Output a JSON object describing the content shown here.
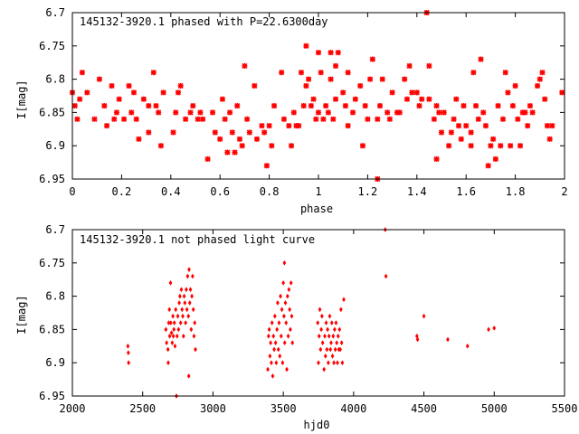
{
  "colors": {
    "points": "#ff0000",
    "axes": "#000000",
    "background": "#ffffff"
  },
  "chart_data": [
    {
      "type": "scatter",
      "title": "145132-3920.1 phased with P=22.6300day",
      "xlabel": "phase",
      "ylabel": "I[mag]",
      "xlim": [
        0,
        2
      ],
      "ylim": [
        6.7,
        6.95
      ],
      "y_inverted": true,
      "x_ticks": [
        0,
        0.2,
        0.4,
        0.6,
        0.8,
        1,
        1.2,
        1.4,
        1.6,
        1.8,
        2
      ],
      "x_tick_labels": [
        "0",
        "0.2",
        "0.4",
        "0.6",
        "0.8",
        "1",
        "1.2",
        "1.4",
        "1.6",
        "1.8",
        "2"
      ],
      "y_ticks": [
        6.7,
        6.75,
        6.8,
        6.85,
        6.9,
        6.95
      ],
      "y_tick_labels": [
        "6.7",
        "6.75",
        "6.8",
        "6.85",
        "6.9",
        "6.95"
      ],
      "marker": "cross",
      "grid": false,
      "points": [
        [
          0.0,
          6.82
        ],
        [
          0.01,
          6.84
        ],
        [
          0.02,
          6.86
        ],
        [
          0.03,
          6.83
        ],
        [
          0.04,
          6.79
        ],
        [
          0.06,
          6.82
        ],
        [
          0.09,
          6.86
        ],
        [
          0.11,
          6.8
        ],
        [
          0.13,
          6.84
        ],
        [
          0.14,
          6.87
        ],
        [
          0.16,
          6.81
        ],
        [
          0.17,
          6.86
        ],
        [
          0.18,
          6.85
        ],
        [
          0.19,
          6.83
        ],
        [
          0.21,
          6.86
        ],
        [
          0.23,
          6.81
        ],
        [
          0.24,
          6.85
        ],
        [
          0.25,
          6.82
        ],
        [
          0.26,
          6.86
        ],
        [
          0.27,
          6.89
        ],
        [
          0.29,
          6.83
        ],
        [
          0.31,
          6.84
        ],
        [
          0.31,
          6.88
        ],
        [
          0.33,
          6.79
        ],
        [
          0.34,
          6.84
        ],
        [
          0.35,
          6.85
        ],
        [
          0.36,
          6.9
        ],
        [
          0.37,
          6.82
        ],
        [
          0.41,
          6.88
        ],
        [
          0.42,
          6.85
        ],
        [
          0.43,
          6.82
        ],
        [
          0.44,
          6.81
        ],
        [
          0.46,
          6.86
        ],
        [
          0.48,
          6.85
        ],
        [
          0.49,
          6.84
        ],
        [
          0.51,
          6.86
        ],
        [
          0.52,
          6.85
        ],
        [
          0.53,
          6.86
        ],
        [
          0.55,
          6.92
        ],
        [
          0.57,
          6.85
        ],
        [
          0.58,
          6.88
        ],
        [
          0.6,
          6.89
        ],
        [
          0.61,
          6.83
        ],
        [
          0.62,
          6.86
        ],
        [
          0.63,
          6.91
        ],
        [
          0.64,
          6.85
        ],
        [
          0.65,
          6.88
        ],
        [
          0.66,
          6.91
        ],
        [
          0.67,
          6.84
        ],
        [
          0.68,
          6.89
        ],
        [
          0.69,
          6.9
        ],
        [
          0.7,
          6.78
        ],
        [
          0.71,
          6.86
        ],
        [
          0.72,
          6.88
        ],
        [
          0.74,
          6.81
        ],
        [
          0.75,
          6.89
        ],
        [
          0.77,
          6.87
        ],
        [
          0.78,
          6.88
        ],
        [
          0.79,
          6.93
        ],
        [
          0.8,
          6.87
        ],
        [
          0.81,
          6.9
        ],
        [
          0.82,
          6.84
        ],
        [
          0.85,
          6.79
        ],
        [
          0.86,
          6.86
        ],
        [
          0.88,
          6.87
        ],
        [
          0.89,
          6.9
        ],
        [
          0.9,
          6.85
        ],
        [
          0.91,
          6.87
        ],
        [
          0.92,
          6.87
        ],
        [
          0.93,
          6.79
        ],
        [
          0.94,
          6.84
        ],
        [
          0.95,
          6.75
        ],
        [
          0.95,
          6.81
        ],
        [
          0.96,
          6.8
        ],
        [
          0.97,
          6.84
        ],
        [
          0.98,
          6.83
        ],
        [
          0.99,
          6.86
        ],
        [
          1.0,
          6.85
        ],
        [
          1.0,
          6.76
        ],
        [
          1.01,
          6.79
        ],
        [
          1.02,
          6.86
        ],
        [
          1.03,
          6.84
        ],
        [
          1.04,
          6.85
        ],
        [
          1.05,
          6.8
        ],
        [
          1.05,
          6.76
        ],
        [
          1.06,
          6.86
        ],
        [
          1.07,
          6.83
        ],
        [
          1.07,
          6.78
        ],
        [
          1.08,
          6.76
        ],
        [
          1.1,
          6.82
        ],
        [
          1.11,
          6.84
        ],
        [
          1.12,
          6.79
        ],
        [
          1.12,
          6.87
        ],
        [
          1.14,
          6.85
        ],
        [
          1.15,
          6.83
        ],
        [
          1.17,
          6.81
        ],
        [
          1.18,
          6.9
        ],
        [
          1.19,
          6.84
        ],
        [
          1.2,
          6.86
        ],
        [
          1.21,
          6.8
        ],
        [
          1.22,
          6.77
        ],
        [
          1.24,
          6.86
        ],
        [
          1.24,
          6.95
        ],
        [
          1.25,
          6.84
        ],
        [
          1.26,
          6.8
        ],
        [
          1.28,
          6.85
        ],
        [
          1.29,
          6.86
        ],
        [
          1.3,
          6.82
        ],
        [
          1.32,
          6.85
        ],
        [
          1.33,
          6.85
        ],
        [
          1.35,
          6.8
        ],
        [
          1.36,
          6.83
        ],
        [
          1.37,
          6.78
        ],
        [
          1.38,
          6.82
        ],
        [
          1.4,
          6.82
        ],
        [
          1.41,
          6.84
        ],
        [
          1.42,
          6.83
        ],
        [
          1.44,
          6.7
        ],
        [
          1.45,
          6.83
        ],
        [
          1.45,
          6.78
        ],
        [
          1.47,
          6.86
        ],
        [
          1.48,
          6.84
        ],
        [
          1.48,
          6.92
        ],
        [
          1.49,
          6.85
        ],
        [
          1.5,
          6.88
        ],
        [
          1.51,
          6.85
        ],
        [
          1.53,
          6.9
        ],
        [
          1.54,
          6.88
        ],
        [
          1.55,
          6.86
        ],
        [
          1.56,
          6.83
        ],
        [
          1.57,
          6.87
        ],
        [
          1.58,
          6.89
        ],
        [
          1.59,
          6.84
        ],
        [
          1.6,
          6.87
        ],
        [
          1.62,
          6.9
        ],
        [
          1.62,
          6.88
        ],
        [
          1.63,
          6.79
        ],
        [
          1.64,
          6.84
        ],
        [
          1.65,
          6.86
        ],
        [
          1.66,
          6.77
        ],
        [
          1.67,
          6.85
        ],
        [
          1.68,
          6.87
        ],
        [
          1.69,
          6.93
        ],
        [
          1.7,
          6.9
        ],
        [
          1.71,
          6.89
        ],
        [
          1.72,
          6.92
        ],
        [
          1.73,
          6.84
        ],
        [
          1.74,
          6.9
        ],
        [
          1.75,
          6.86
        ],
        [
          1.76,
          6.79
        ],
        [
          1.77,
          6.82
        ],
        [
          1.78,
          6.9
        ],
        [
          1.79,
          6.84
        ],
        [
          1.8,
          6.81
        ],
        [
          1.81,
          6.86
        ],
        [
          1.82,
          6.9
        ],
        [
          1.83,
          6.85
        ],
        [
          1.84,
          6.85
        ],
        [
          1.85,
          6.87
        ],
        [
          1.86,
          6.84
        ],
        [
          1.87,
          6.85
        ],
        [
          1.89,
          6.81
        ],
        [
          1.9,
          6.8
        ],
        [
          1.91,
          6.79
        ],
        [
          1.92,
          6.83
        ],
        [
          1.93,
          6.87
        ],
        [
          1.94,
          6.89
        ],
        [
          1.95,
          6.87
        ],
        [
          1.99,
          6.82
        ]
      ]
    },
    {
      "type": "scatter",
      "title": "145132-3920.1 not phased light curve",
      "xlabel": "hjd0",
      "ylabel": "I[mag]",
      "xlim": [
        2000,
        5500
      ],
      "ylim": [
        6.7,
        6.95
      ],
      "y_inverted": true,
      "x_ticks": [
        2000,
        2500,
        3000,
        3500,
        4000,
        4500,
        5000,
        5500
      ],
      "x_tick_labels": [
        "2000",
        "2500",
        "3000",
        "3500",
        "4000",
        "4500",
        "5000",
        "5500"
      ],
      "y_ticks": [
        6.7,
        6.75,
        6.8,
        6.85,
        6.9,
        6.95
      ],
      "y_tick_labels": [
        "6.7",
        "6.75",
        "6.8",
        "6.85",
        "6.9",
        "6.95"
      ],
      "marker": "diamond",
      "grid": false,
      "points": [
        [
          2395,
          6.875
        ],
        [
          2398,
          6.885
        ],
        [
          2400,
          6.9
        ],
        [
          2665,
          6.85
        ],
        [
          2670,
          6.87
        ],
        [
          2680,
          6.88
        ],
        [
          2682,
          6.9
        ],
        [
          2685,
          6.84
        ],
        [
          2690,
          6.82
        ],
        [
          2692,
          6.86
        ],
        [
          2698,
          6.78
        ],
        [
          2700,
          6.84
        ],
        [
          2705,
          6.855
        ],
        [
          2710,
          6.87
        ],
        [
          2715,
          6.83
        ],
        [
          2718,
          6.86
        ],
        [
          2722,
          6.85
        ],
        [
          2725,
          6.84
        ],
        [
          2730,
          6.875
        ],
        [
          2735,
          6.82
        ],
        [
          2740,
          6.95
        ],
        [
          2745,
          6.86
        ],
        [
          2750,
          6.83
        ],
        [
          2755,
          6.85
        ],
        [
          2760,
          6.81
        ],
        [
          2765,
          6.8
        ],
        [
          2770,
          6.84
        ],
        [
          2775,
          6.79
        ],
        [
          2780,
          6.82
        ],
        [
          2785,
          6.83
        ],
        [
          2790,
          6.86
        ],
        [
          2795,
          6.8
        ],
        [
          2800,
          6.81
        ],
        [
          2805,
          6.84
        ],
        [
          2810,
          6.79
        ],
        [
          2815,
          6.82
        ],
        [
          2820,
          6.77
        ],
        [
          2825,
          6.83
        ],
        [
          2828,
          6.92
        ],
        [
          2830,
          6.76
        ],
        [
          2835,
          6.81
        ],
        [
          2840,
          6.79
        ],
        [
          2845,
          6.85
        ],
        [
          2850,
          6.8
        ],
        [
          2855,
          6.77
        ],
        [
          2860,
          6.82
        ],
        [
          2865,
          6.86
        ],
        [
          2870,
          6.84
        ],
        [
          2875,
          6.88
        ],
        [
          3390,
          6.91
        ],
        [
          3395,
          6.86
        ],
        [
          3400,
          6.85
        ],
        [
          3405,
          6.89
        ],
        [
          3410,
          6.87
        ],
        [
          3415,
          6.9
        ],
        [
          3420,
          6.84
        ],
        [
          3425,
          6.92
        ],
        [
          3430,
          6.86
        ],
        [
          3435,
          6.88
        ],
        [
          3440,
          6.83
        ],
        [
          3445,
          6.87
        ],
        [
          3450,
          6.9
        ],
        [
          3455,
          6.85
        ],
        [
          3460,
          6.81
        ],
        [
          3465,
          6.88
        ],
        [
          3470,
          6.84
        ],
        [
          3475,
          6.89
        ],
        [
          3480,
          6.8
        ],
        [
          3485,
          6.86
        ],
        [
          3490,
          6.82
        ],
        [
          3495,
          6.9
        ],
        [
          3500,
          6.78
        ],
        [
          3505,
          6.83
        ],
        [
          3508,
          6.75
        ],
        [
          3510,
          6.87
        ],
        [
          3515,
          6.81
        ],
        [
          3520,
          6.84
        ],
        [
          3525,
          6.91
        ],
        [
          3530,
          6.8
        ],
        [
          3535,
          6.86
        ],
        [
          3540,
          6.79
        ],
        [
          3545,
          6.82
        ],
        [
          3550,
          6.85
        ],
        [
          3555,
          6.78
        ],
        [
          3560,
          6.83
        ],
        [
          3565,
          6.87
        ],
        [
          3745,
          6.84
        ],
        [
          3750,
          6.9
        ],
        [
          3755,
          6.86
        ],
        [
          3760,
          6.82
        ],
        [
          3765,
          6.88
        ],
        [
          3770,
          6.85
        ],
        [
          3775,
          6.83
        ],
        [
          3780,
          6.87
        ],
        [
          3790,
          6.91
        ],
        [
          3795,
          6.86
        ],
        [
          3800,
          6.89
        ],
        [
          3805,
          6.84
        ],
        [
          3810,
          6.88
        ],
        [
          3815,
          6.85
        ],
        [
          3820,
          6.9
        ],
        [
          3825,
          6.86
        ],
        [
          3830,
          6.83
        ],
        [
          3835,
          6.88
        ],
        [
          3840,
          6.87
        ],
        [
          3845,
          6.84
        ],
        [
          3850,
          6.89
        ],
        [
          3855,
          6.86
        ],
        [
          3860,
          6.9
        ],
        [
          3865,
          6.85
        ],
        [
          3870,
          6.88
        ],
        [
          3875,
          6.84
        ],
        [
          3880,
          6.87
        ],
        [
          3885,
          6.9
        ],
        [
          3890,
          6.86
        ],
        [
          3895,
          6.88
        ],
        [
          3900,
          6.85
        ],
        [
          3905,
          6.88
        ],
        [
          3910,
          6.82
        ],
        [
          3915,
          6.87
        ],
        [
          3920,
          6.9
        ],
        [
          3930,
          6.805
        ],
        [
          4225,
          6.7
        ],
        [
          4230,
          6.77
        ],
        [
          4450,
          6.86
        ],
        [
          4455,
          6.865
        ],
        [
          4500,
          6.83
        ],
        [
          4670,
          6.865
        ],
        [
          4810,
          6.875
        ],
        [
          4960,
          6.85
        ],
        [
          5000,
          6.848
        ]
      ]
    }
  ]
}
